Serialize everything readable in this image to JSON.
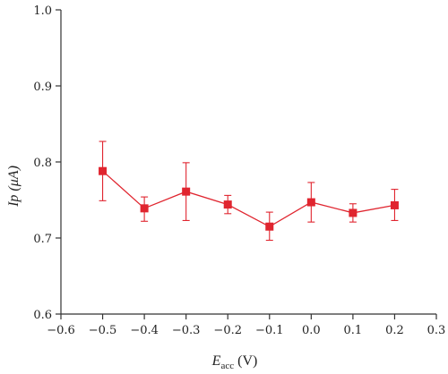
{
  "chart_data": {
    "type": "line",
    "title": "",
    "ylabel": "Ip (μA)",
    "xlabel_parts": {
      "main": "E",
      "sub": "acc",
      "unit": "(V)"
    },
    "xlim": [
      -0.6,
      0.3
    ],
    "ylim": [
      0.6,
      1.0
    ],
    "x_ticks": [
      -0.6,
      -0.5,
      -0.4,
      -0.3,
      -0.2,
      -0.1,
      0.0,
      0.1,
      0.2,
      0.3
    ],
    "x_tick_labels": [
      "−0.6",
      "−0.5",
      "−0.4",
      "−0.3",
      "−0.2",
      "−0.1",
      "0.0",
      "0.1",
      "0.2",
      "0.3"
    ],
    "y_ticks": [
      0.6,
      0.7,
      0.8,
      0.9,
      1.0
    ],
    "y_tick_labels": [
      "0.6",
      "0.7",
      "0.8",
      "0.9",
      "1.0"
    ],
    "grid": false,
    "series": [
      {
        "color": "#e0252f",
        "marker": "square",
        "x": [
          -0.5,
          -0.4,
          -0.3,
          -0.2,
          -0.1,
          0.0,
          0.1,
          0.2
        ],
        "y": [
          0.788,
          0.739,
          0.761,
          0.744,
          0.715,
          0.747,
          0.733,
          0.743
        ],
        "y_err_low": [
          0.749,
          0.722,
          0.723,
          0.732,
          0.697,
          0.721,
          0.721,
          0.723
        ],
        "y_err_high": [
          0.827,
          0.754,
          0.799,
          0.756,
          0.734,
          0.773,
          0.745,
          0.764
        ]
      }
    ]
  }
}
